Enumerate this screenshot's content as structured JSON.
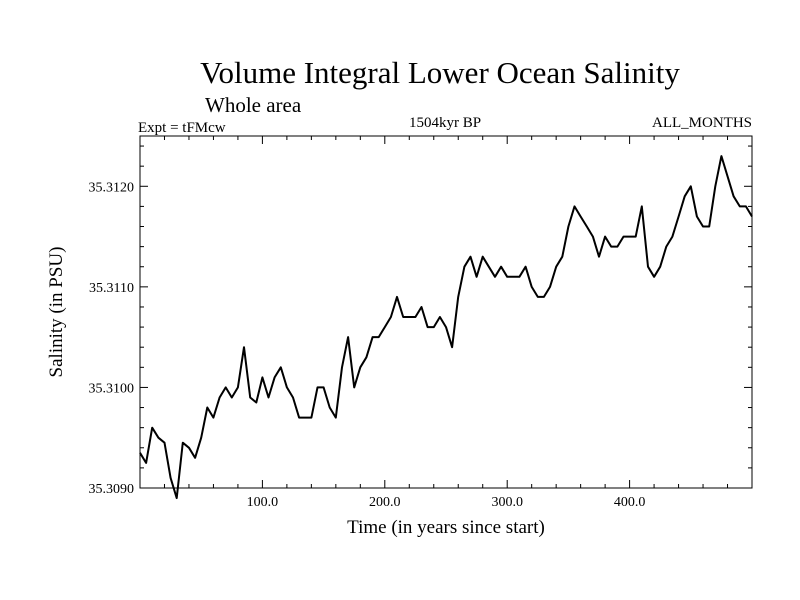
{
  "chart_data": {
    "type": "line",
    "title": "Volume Integral Lower Ocean Salinity",
    "subtitle": "Whole area",
    "header_left": "Expt = tFMcw",
    "header_center": "1504kyr BP",
    "header_right": "ALL_MONTHS",
    "xlabel": "Time (in years since start)",
    "ylabel": "Salinity (in PSU)",
    "xlim": [
      0,
      500
    ],
    "ylim": [
      35.309,
      35.3125
    ],
    "x_ticks": [
      {
        "value": 100,
        "label": "100.0"
      },
      {
        "value": 200,
        "label": "200.0"
      },
      {
        "value": 300,
        "label": "300.0"
      },
      {
        "value": 400,
        "label": "400.0"
      }
    ],
    "y_ticks": [
      {
        "value": 35.309,
        "label": "35.3090"
      },
      {
        "value": 35.31,
        "label": "35.3100"
      },
      {
        "value": 35.311,
        "label": "35.3110"
      },
      {
        "value": 35.312,
        "label": "35.3120"
      }
    ],
    "series": [
      {
        "name": "Salinity",
        "color": "#000000",
        "points": [
          [
            0,
            35.30935
          ],
          [
            5,
            35.30925
          ],
          [
            10,
            35.3096
          ],
          [
            15,
            35.3095
          ],
          [
            20,
            35.30945
          ],
          [
            25,
            35.3091
          ],
          [
            30,
            35.3089
          ],
          [
            35,
            35.30945
          ],
          [
            40,
            35.3094
          ],
          [
            45,
            35.3093
          ],
          [
            50,
            35.3095
          ],
          [
            55,
            35.3098
          ],
          [
            60,
            35.3097
          ],
          [
            65,
            35.3099
          ],
          [
            70,
            35.31
          ],
          [
            75,
            35.3099
          ],
          [
            80,
            35.31
          ],
          [
            85,
            35.3104
          ],
          [
            90,
            35.3099
          ],
          [
            95,
            35.30985
          ],
          [
            100,
            35.3101
          ],
          [
            105,
            35.3099
          ],
          [
            110,
            35.3101
          ],
          [
            115,
            35.3102
          ],
          [
            120,
            35.31
          ],
          [
            125,
            35.3099
          ],
          [
            130,
            35.3097
          ],
          [
            135,
            35.3097
          ],
          [
            140,
            35.3097
          ],
          [
            145,
            35.31
          ],
          [
            150,
            35.31
          ],
          [
            155,
            35.3098
          ],
          [
            160,
            35.3097
          ],
          [
            165,
            35.3102
          ],
          [
            170,
            35.3105
          ],
          [
            175,
            35.31
          ],
          [
            180,
            35.3102
          ],
          [
            185,
            35.3103
          ],
          [
            190,
            35.3105
          ],
          [
            195,
            35.3105
          ],
          [
            200,
            35.3106
          ],
          [
            205,
            35.3107
          ],
          [
            210,
            35.3109
          ],
          [
            215,
            35.3107
          ],
          [
            220,
            35.3107
          ],
          [
            225,
            35.3107
          ],
          [
            230,
            35.3108
          ],
          [
            235,
            35.3106
          ],
          [
            240,
            35.3106
          ],
          [
            245,
            35.3107
          ],
          [
            250,
            35.3106
          ],
          [
            255,
            35.3104
          ],
          [
            260,
            35.3109
          ],
          [
            265,
            35.3112
          ],
          [
            270,
            35.3113
          ],
          [
            275,
            35.3111
          ],
          [
            280,
            35.3113
          ],
          [
            285,
            35.3112
          ],
          [
            290,
            35.3111
          ],
          [
            295,
            35.3112
          ],
          [
            300,
            35.3111
          ],
          [
            305,
            35.3111
          ],
          [
            310,
            35.3111
          ],
          [
            315,
            35.3112
          ],
          [
            320,
            35.311
          ],
          [
            325,
            35.3109
          ],
          [
            330,
            35.3109
          ],
          [
            335,
            35.311
          ],
          [
            340,
            35.3112
          ],
          [
            345,
            35.3113
          ],
          [
            350,
            35.3116
          ],
          [
            355,
            35.3118
          ],
          [
            360,
            35.3117
          ],
          [
            365,
            35.3116
          ],
          [
            370,
            35.3115
          ],
          [
            375,
            35.3113
          ],
          [
            380,
            35.3115
          ],
          [
            385,
            35.3114
          ],
          [
            390,
            35.3114
          ],
          [
            395,
            35.3115
          ],
          [
            400,
            35.3115
          ],
          [
            405,
            35.3115
          ],
          [
            410,
            35.3118
          ],
          [
            415,
            35.3112
          ],
          [
            420,
            35.3111
          ],
          [
            425,
            35.3112
          ],
          [
            430,
            35.3114
          ],
          [
            435,
            35.3115
          ],
          [
            440,
            35.3117
          ],
          [
            445,
            35.3119
          ],
          [
            450,
            35.312
          ],
          [
            455,
            35.3117
          ],
          [
            460,
            35.3116
          ],
          [
            465,
            35.3116
          ],
          [
            470,
            35.312
          ],
          [
            475,
            35.3123
          ],
          [
            480,
            35.3121
          ],
          [
            485,
            35.3119
          ],
          [
            490,
            35.3118
          ],
          [
            495,
            35.3118
          ],
          [
            500,
            35.3117
          ]
        ]
      }
    ]
  }
}
